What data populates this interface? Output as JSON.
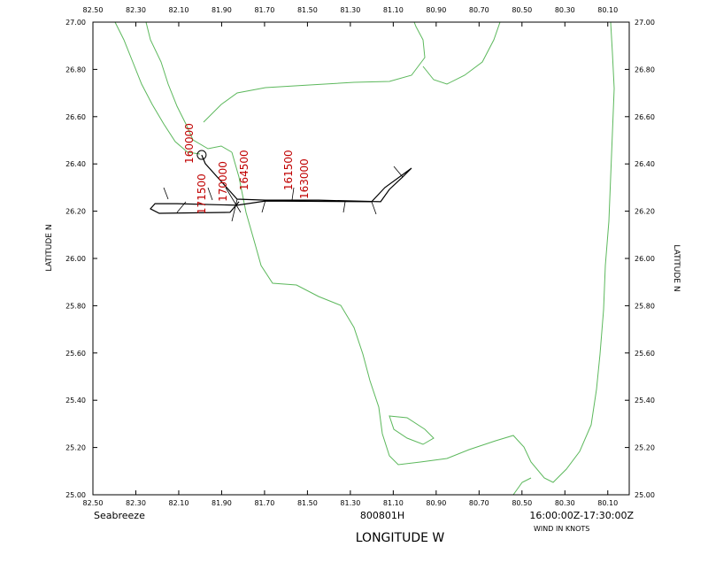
{
  "map": {
    "x_label": "LONGITUDE  W",
    "y_label": "LATITUDE  N",
    "xlim": [
      82.5,
      80.0
    ],
    "ylim": [
      25,
      27
    ],
    "xticks": [
      {
        "value": 82.5,
        "label": "82.50"
      },
      {
        "value": 82.3,
        "label": "82.30"
      },
      {
        "value": 82.1,
        "label": "82.10"
      },
      {
        "value": 81.9,
        "label": "81.90"
      },
      {
        "value": 81.7,
        "label": "81.70"
      },
      {
        "value": 81.5,
        "label": "81.50"
      },
      {
        "value": 81.3,
        "label": "81.30"
      },
      {
        "value": 81.1,
        "label": "81.10"
      },
      {
        "value": 80.9,
        "label": "80.90"
      },
      {
        "value": 80.7,
        "label": "80.70"
      },
      {
        "value": 80.5,
        "label": "80.50"
      },
      {
        "value": 80.3,
        "label": "80.30"
      },
      {
        "value": 80.1,
        "label": "80.10"
      }
    ],
    "yticks": [
      {
        "value": 25,
        "label": "25.00"
      },
      {
        "value": 25.2,
        "label": "25.20"
      },
      {
        "value": 25.4,
        "label": "25.40"
      },
      {
        "value": 25.6,
        "label": "25.60"
      },
      {
        "value": 25.8,
        "label": "25.80"
      },
      {
        "value": 26,
        "label": "26.00"
      },
      {
        "value": 26.2,
        "label": "26.20"
      },
      {
        "value": 26.4,
        "label": "26.40"
      },
      {
        "value": 26.6,
        "label": "26.60"
      },
      {
        "value": 26.8,
        "label": "26.80"
      },
      {
        "value": 27,
        "label": "27.00"
      }
    ],
    "track": {
      "lon": [
        81.993,
        81.976,
        81.902,
        81.828,
        81.696,
        81.448,
        81.159,
        81.118,
        81.056,
        81.015,
        81.139,
        81.201,
        81.696,
        81.828,
        82.108,
        82.211,
        82.232,
        82.191,
        81.861,
        81.819
      ],
      "lat": [
        26.438,
        26.401,
        26.326,
        26.251,
        26.247,
        26.247,
        26.24,
        26.292,
        26.345,
        26.382,
        26.3,
        26.24,
        26.243,
        26.225,
        26.232,
        26.232,
        26.21,
        26.191,
        26.195,
        26.24
      ]
    },
    "time_labels": [
      {
        "text": "160000",
        "lon": 82.034,
        "lat": 26.401
      },
      {
        "text": "171500",
        "lon": 81.976,
        "lat": 26.187
      },
      {
        "text": "170000",
        "lon": 81.877,
        "lat": 26.24
      },
      {
        "text": "164500",
        "lon": 81.778,
        "lat": 26.288
      },
      {
        "text": "161500",
        "lon": 81.572,
        "lat": 26.288
      },
      {
        "text": "163000",
        "lon": 81.498,
        "lat": 26.251
      }
    ]
  },
  "footer": {
    "left": "Seabreeze",
    "center": "800801H",
    "right": "16:00:00Z-17:30:00Z",
    "note": "WIND IN KNOTS"
  }
}
